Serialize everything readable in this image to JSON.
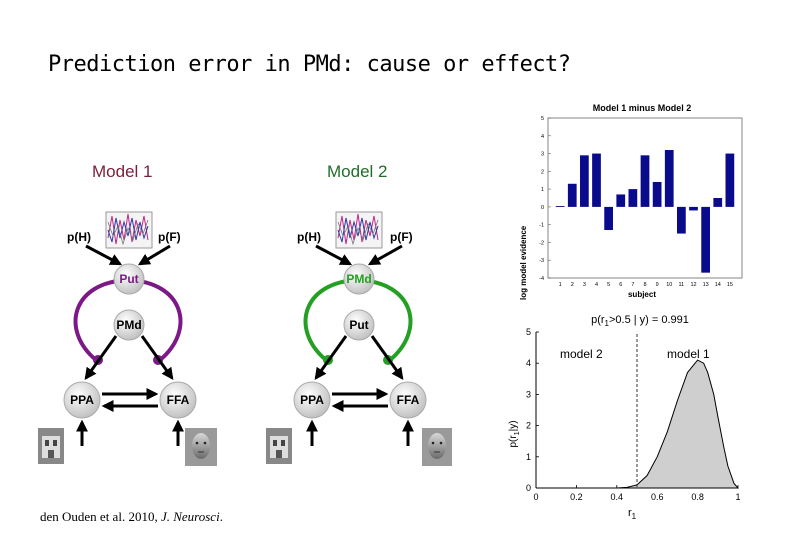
{
  "slide": {
    "title": "Prediction error in PMd: cause or effect?",
    "citation_authors": "den Ouden et al. 2010, ",
    "citation_journal": "J. Neurosci",
    "citation_end": "."
  },
  "models": [
    {
      "title": "Model 1",
      "top_node": "Put",
      "middle_node": "PMd",
      "loop_color": "#7b1a86",
      "top_node_color": "#7b1a86"
    },
    {
      "title": "Model 2",
      "top_node": "PMd",
      "middle_node": "Put",
      "loop_color": "#23a023",
      "top_node_color": "#23a023"
    }
  ],
  "diagram_labels": {
    "pH": "p(H)",
    "pF": "p(F)",
    "ppa": "PPA",
    "ffa": "FFA"
  },
  "chart_data": [
    {
      "type": "bar",
      "title": "Model 1 minus Model 2",
      "xlabel": "subject",
      "ylabel": "log model evidence",
      "categories": [
        "1",
        "2",
        "3",
        "4",
        "5",
        "6",
        "7",
        "8",
        "9",
        "10",
        "11",
        "12",
        "13",
        "14",
        "15"
      ],
      "values": [
        0.05,
        1.3,
        2.9,
        3.0,
        -1.3,
        0.7,
        1.0,
        2.9,
        1.4,
        3.2,
        -1.5,
        -0.2,
        -3.7,
        0.5,
        3.0
      ],
      "ylim": [
        -4,
        5
      ],
      "yticks": [
        5,
        4,
        3,
        2,
        1,
        0,
        -1,
        -2,
        -3,
        -4
      ],
      "bar_color": "#0a0a8c"
    },
    {
      "type": "area",
      "title": "p(r1>0.5 | y) = 0.991",
      "title_parts": {
        "a": "p(r",
        "sub1": "1",
        "b": ">0.5 | y) = 0.991"
      },
      "xlabel_parts": {
        "main": "r",
        "sub": "1"
      },
      "ylabel_parts": {
        "a": "p(r",
        "sub": "1",
        "b": "|y)"
      },
      "xlim": [
        0,
        1
      ],
      "ylim": [
        0,
        5
      ],
      "xticks": [
        "0",
        "0.2",
        "0.4",
        "0.6",
        "0.8",
        "1"
      ],
      "yticks": [
        "0",
        "1",
        "2",
        "3",
        "4",
        "5"
      ],
      "threshold": 0.5,
      "label_left": "model 2",
      "label_right": "model 1",
      "x": [
        0.4,
        0.45,
        0.5,
        0.55,
        0.6,
        0.65,
        0.7,
        0.75,
        0.8,
        0.83,
        0.85,
        0.88,
        0.9,
        0.93,
        0.95,
        0.98,
        1.0
      ],
      "y": [
        0.0,
        0.02,
        0.1,
        0.4,
        1.0,
        1.8,
        2.8,
        3.7,
        4.1,
        4.0,
        3.7,
        3.0,
        2.3,
        1.3,
        0.7,
        0.15,
        0.0
      ]
    }
  ]
}
